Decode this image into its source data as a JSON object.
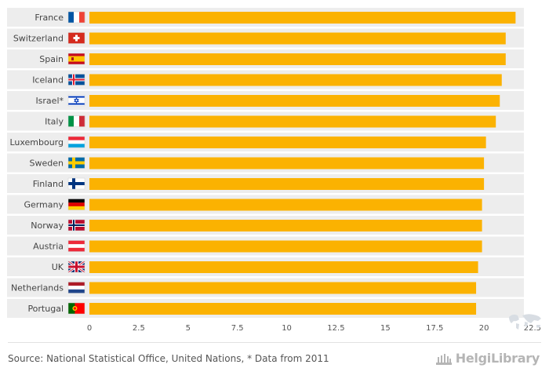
{
  "chart_data": {
    "type": "bar",
    "orientation": "horizontal",
    "title": "",
    "xlabel": "",
    "ylabel": "",
    "categories": [
      "France",
      "Switzerland",
      "Spain",
      "Iceland",
      "Israel*",
      "Italy",
      "Luxembourg",
      "Sweden",
      "Finland",
      "Germany",
      "Norway",
      "Austria",
      "UK",
      "Netherlands",
      "Portugal"
    ],
    "values": [
      21.6,
      21.1,
      21.1,
      20.9,
      20.8,
      20.6,
      20.1,
      20.0,
      20.0,
      19.9,
      19.9,
      19.9,
      19.7,
      19.6,
      19.6
    ],
    "flags": [
      "flag-france-icon",
      "flag-switzerland-icon",
      "flag-spain-icon",
      "flag-iceland-icon",
      "flag-israel-icon",
      "flag-italy-icon",
      "flag-luxembourg-icon",
      "flag-sweden-icon",
      "flag-finland-icon",
      "flag-germany-icon",
      "flag-norway-icon",
      "flag-austria-icon",
      "flag-uk-icon",
      "flag-netherlands-icon",
      "flag-portugal-icon"
    ],
    "xticks": [
      "0",
      "2.5",
      "5",
      "7.5",
      "10",
      "12.5",
      "15",
      "17.5",
      "20",
      "22.5"
    ],
    "xlim": [
      0,
      22.5
    ],
    "grid": false,
    "legend": "none",
    "bar_color": "#fbb201",
    "row_band_color": "#ededed"
  },
  "footer": {
    "source": "Source: National Statistical Office, United Nations, * Data from 2011",
    "brand": "HelgiLibrary"
  }
}
